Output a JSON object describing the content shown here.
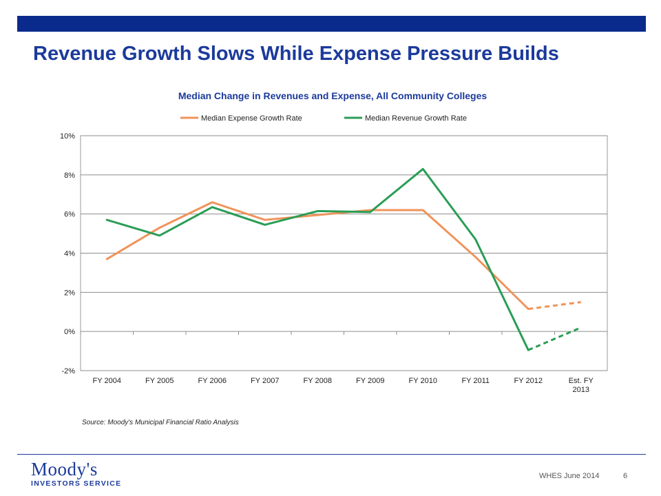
{
  "slide": {
    "title": "Revenue Growth Slows While Expense Pressure Builds",
    "source": "Source: Moody's Municipal Financial Ratio Analysis",
    "footer_label": "WHES June 2014",
    "page_number": "6"
  },
  "logo": {
    "main": "Moody's",
    "sub": "INVESTORS SERVICE"
  },
  "colors": {
    "brand": "#0a2a8c",
    "title": "#1b3a9c",
    "expense": "#f0935a",
    "revenue": "#2a9d55"
  },
  "chart_data": {
    "type": "line",
    "title": "Median Change in Revenues and Expense, All Community Colleges",
    "categories": [
      "FY 2004",
      "FY 2005",
      "FY 2006",
      "FY 2007",
      "FY 2008",
      "FY 2009",
      "FY 2010",
      "FY 2011",
      "FY 2012",
      "Est. FY 2013"
    ],
    "y_ticks": [
      "-2%",
      "0%",
      "2%",
      "4%",
      "6%",
      "8%",
      "10%"
    ],
    "ylim": [
      -2,
      10
    ],
    "y_unit": "%",
    "grid": true,
    "legend_position": "top",
    "estimated_from_index": 8,
    "series": [
      {
        "name": "Median Expense Growth Rate",
        "color": "#f0935a",
        "values": [
          3.7,
          5.3,
          6.6,
          5.7,
          5.95,
          6.2,
          6.2,
          3.8,
          1.15,
          1.5
        ]
      },
      {
        "name": "Median Revenue Growth Rate",
        "color": "#2a9d55",
        "values": [
          5.7,
          4.9,
          6.35,
          5.45,
          6.15,
          6.1,
          8.3,
          4.7,
          -0.95,
          0.2
        ]
      }
    ]
  }
}
